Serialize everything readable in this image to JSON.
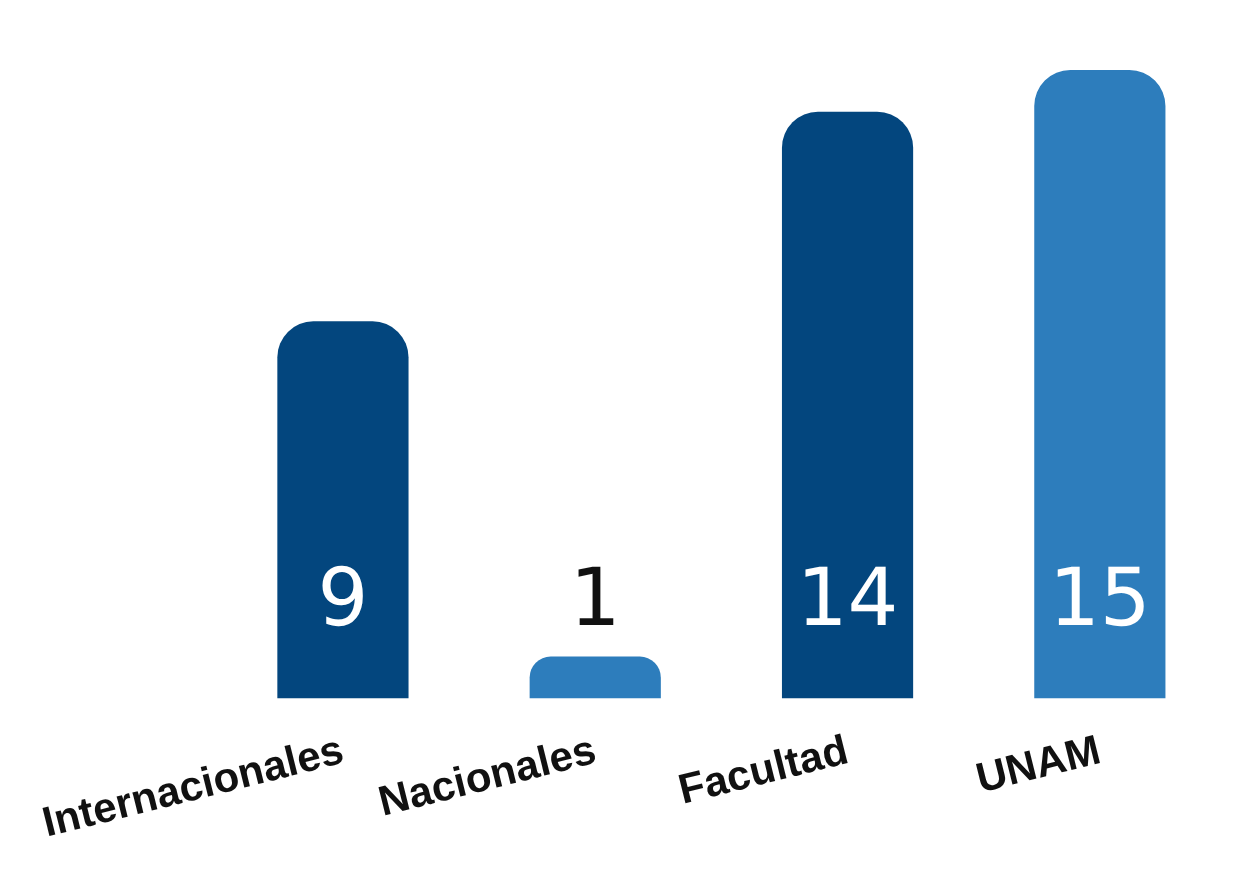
{
  "chart_data": {
    "type": "bar",
    "categories": [
      "Internacionales",
      "Nacionales",
      "Facultad",
      "UNAM"
    ],
    "values": [
      9,
      1,
      14,
      15
    ],
    "colors": [
      "#03467e",
      "#2d7dbc",
      "#03467e",
      "#2d7dbc"
    ],
    "data_labels": true,
    "grid": false,
    "legend": false,
    "tick_labels": "x"
  }
}
